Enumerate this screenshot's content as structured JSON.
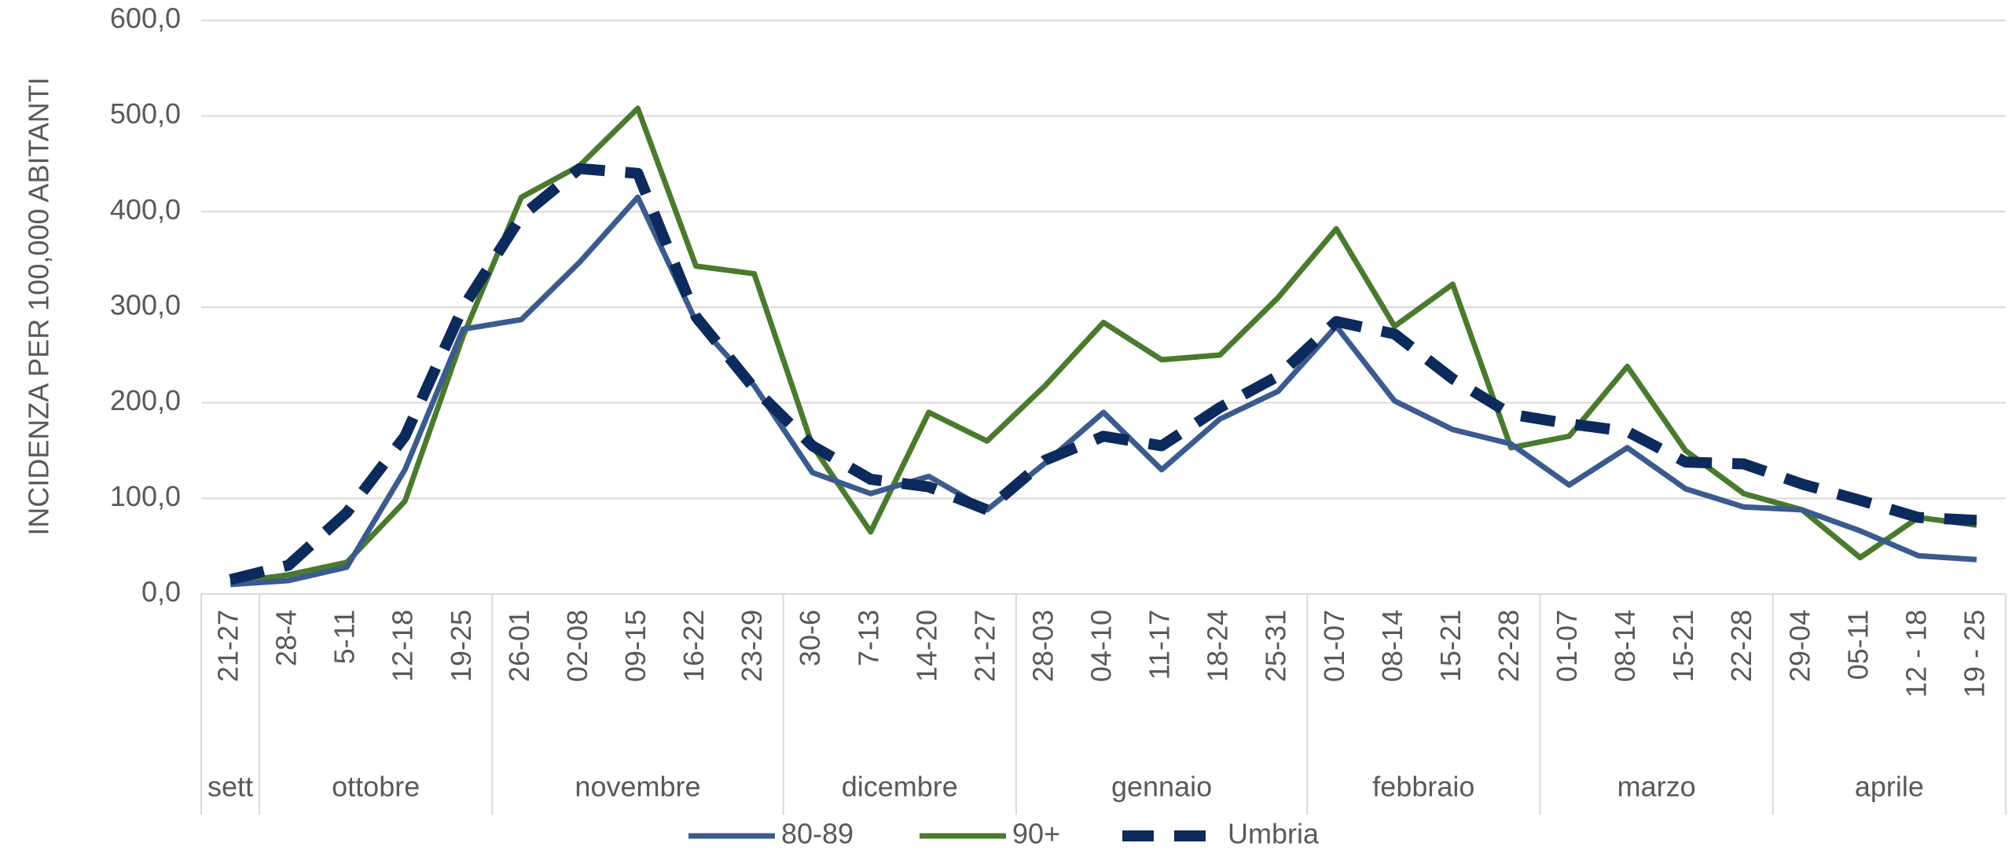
{
  "chart_data": {
    "type": "line",
    "y_label": "INCIDENZA PER 100,000 ABITANTI",
    "groups": [
      {
        "name": "sett",
        "categories": [
          "21-27"
        ]
      },
      {
        "name": "ottobre",
        "categories": [
          "28-4",
          "5-11",
          "12-18",
          "19-25"
        ]
      },
      {
        "name": "novembre",
        "categories": [
          "26-01",
          "02-08",
          "09-15",
          "16-22",
          "23-29"
        ]
      },
      {
        "name": "dicembre",
        "categories": [
          "30-6",
          "7-13",
          "14-20",
          "21-27"
        ]
      },
      {
        "name": "gennaio",
        "categories": [
          "28-03",
          "04-10",
          "11-17",
          "18-24",
          "25-31"
        ]
      },
      {
        "name": "febbraio",
        "categories": [
          "01-07",
          "08-14",
          "15-21",
          "22-28"
        ]
      },
      {
        "name": "marzo",
        "categories": [
          "01-07",
          "08-14",
          "15-21",
          "22-28"
        ]
      },
      {
        "name": "aprile",
        "categories": [
          "29-04",
          "05-11",
          "12 - 18",
          "19 - 25"
        ]
      }
    ],
    "series": [
      {
        "name": "80-89",
        "color": "#3b5b8e",
        "dashed": false,
        "values": [
          10,
          14,
          28,
          130,
          277,
          287,
          347,
          415,
          285,
          218,
          127,
          105,
          123,
          88,
          137,
          190,
          130,
          183,
          212,
          280,
          202,
          172,
          157,
          114,
          153,
          110,
          91,
          88,
          66,
          40,
          36
        ]
      },
      {
        "name": "90+",
        "color": "#4a7a2e",
        "dashed": false,
        "values": [
          12,
          20,
          33,
          97,
          270,
          415,
          448,
          508,
          343,
          335,
          155,
          65,
          190,
          160,
          218,
          284,
          245,
          250,
          310,
          382,
          280,
          324,
          153,
          165,
          238,
          150,
          105,
          88,
          38,
          80,
          72
        ]
      },
      {
        "name": "Umbria",
        "color": "#0d2a5c",
        "dashed": true,
        "values": [
          15,
          30,
          85,
          165,
          300,
          395,
          445,
          440,
          290,
          215,
          155,
          120,
          112,
          88,
          140,
          165,
          155,
          195,
          228,
          285,
          272,
          225,
          188,
          178,
          170,
          138,
          136,
          115,
          98,
          80,
          77
        ]
      }
    ],
    "ylim": [
      0,
      600
    ],
    "yticks": [
      {
        "value": 0,
        "label": "0,0"
      },
      {
        "value": 100,
        "label": "100,0"
      },
      {
        "value": 200,
        "label": "200,0"
      },
      {
        "value": 300,
        "label": "300,0"
      },
      {
        "value": 400,
        "label": "400,0"
      },
      {
        "value": 500,
        "label": "500,0"
      },
      {
        "value": 600,
        "label": "600,0"
      }
    ],
    "grid": true,
    "legend": "bottom"
  }
}
